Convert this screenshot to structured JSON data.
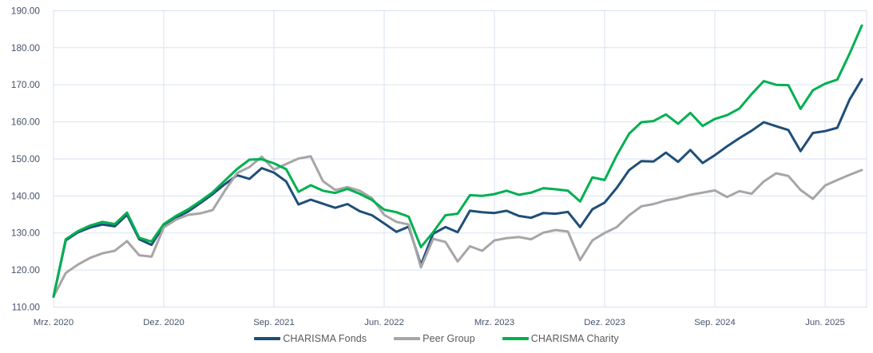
{
  "chart_data": {
    "type": "line",
    "title": "",
    "start_month": "Mrz. 2020",
    "frequency": "monthly",
    "ylim": [
      110,
      190
    ],
    "y_ticks": [
      190,
      180,
      170,
      160,
      150,
      140,
      130,
      120,
      110
    ],
    "y_tick_labels": [
      "190.00",
      "180.00",
      "170.00",
      "160.00",
      "150.00",
      "140.00",
      "130.00",
      "120.00",
      "110.00"
    ],
    "x_ticks": [
      {
        "index": 0,
        "label": "Mrz. 2020"
      },
      {
        "index": 9,
        "label": "Dez. 2020"
      },
      {
        "index": 18,
        "label": "Sep. 2021"
      },
      {
        "index": 27,
        "label": "Jun. 2022"
      },
      {
        "index": 36,
        "label": "Mrz. 2023"
      },
      {
        "index": 45,
        "label": "Dez. 2023"
      },
      {
        "index": 54,
        "label": "Sep. 2024"
      },
      {
        "index": 63,
        "label": "Jun. 2025"
      }
    ],
    "grid": true,
    "legend_position": "bottom",
    "series": [
      {
        "name": "CHARISMA Fonds",
        "color": "#1F4E79",
        "values": [
          112.8,
          128.0,
          130.2,
          131.5,
          132.3,
          131.8,
          134.9,
          128.3,
          126.8,
          132.0,
          134.1,
          135.8,
          138.1,
          140.5,
          143.2,
          145.6,
          144.6,
          147.5,
          146.3,
          143.9,
          137.7,
          139.0,
          137.9,
          136.8,
          137.8,
          135.9,
          134.8,
          132.6,
          130.3,
          131.7,
          121.4,
          129.8,
          131.6,
          130.2,
          136.0,
          135.6,
          135.4,
          136.0,
          134.6,
          134.1,
          135.4,
          135.2,
          135.7,
          131.6,
          136.4,
          138.2,
          142.2,
          147.0,
          149.4,
          149.3,
          151.7,
          149.2,
          152.4,
          148.9,
          151.0,
          153.4,
          155.6,
          157.6,
          159.9,
          158.8,
          157.8,
          152.1,
          157.0,
          157.5,
          158.4,
          166.0,
          171.5
        ]
      },
      {
        "name": "Peer Group",
        "color": "#A6A6A6",
        "values": [
          112.8,
          119.2,
          121.5,
          123.3,
          124.5,
          125.2,
          127.8,
          124.0,
          123.6,
          131.5,
          133.6,
          134.9,
          135.3,
          136.2,
          141.5,
          146.2,
          147.8,
          150.6,
          147.1,
          148.6,
          150.1,
          150.7,
          144.0,
          141.6,
          142.4,
          141.4,
          139.4,
          134.9,
          133.0,
          132.3,
          120.7,
          128.4,
          127.6,
          122.3,
          126.4,
          125.2,
          128.0,
          128.6,
          128.9,
          128.3,
          130.1,
          130.8,
          130.4,
          122.7,
          128.0,
          130.0,
          131.6,
          134.8,
          137.2,
          137.8,
          138.8,
          139.4,
          140.3,
          140.9,
          141.5,
          139.7,
          141.3,
          140.6,
          143.9,
          146.1,
          145.4,
          141.6,
          139.2,
          142.8,
          144.3,
          145.7,
          147.0
        ]
      },
      {
        "name": "CHARISMA Charity",
        "color": "#00B050",
        "values": [
          112.8,
          128.3,
          130.5,
          132.0,
          133.0,
          132.4,
          135.5,
          128.7,
          127.7,
          132.4,
          134.6,
          136.4,
          138.6,
          141.0,
          144.2,
          147.3,
          149.8,
          149.9,
          148.8,
          147.2,
          141.1,
          142.9,
          141.4,
          140.8,
          141.9,
          140.6,
          138.9,
          136.3,
          135.6,
          134.4,
          126.2,
          130.2,
          134.8,
          135.2,
          140.2,
          140.0,
          140.5,
          141.4,
          140.3,
          140.9,
          142.1,
          141.8,
          141.4,
          138.5,
          145.0,
          144.3,
          151.0,
          156.8,
          159.9,
          160.2,
          162.0,
          159.5,
          162.4,
          158.9,
          160.8,
          161.8,
          163.6,
          167.5,
          171.0,
          170.0,
          169.9,
          163.5,
          168.5,
          170.3,
          171.4,
          178.4,
          186.0
        ]
      }
    ]
  },
  "colors": {
    "grid": "#D9E2F0",
    "plot_border": "#D9E2F0",
    "axis_text": "#44546A",
    "legend_text": "#595959",
    "background": "#FFFFFF"
  }
}
